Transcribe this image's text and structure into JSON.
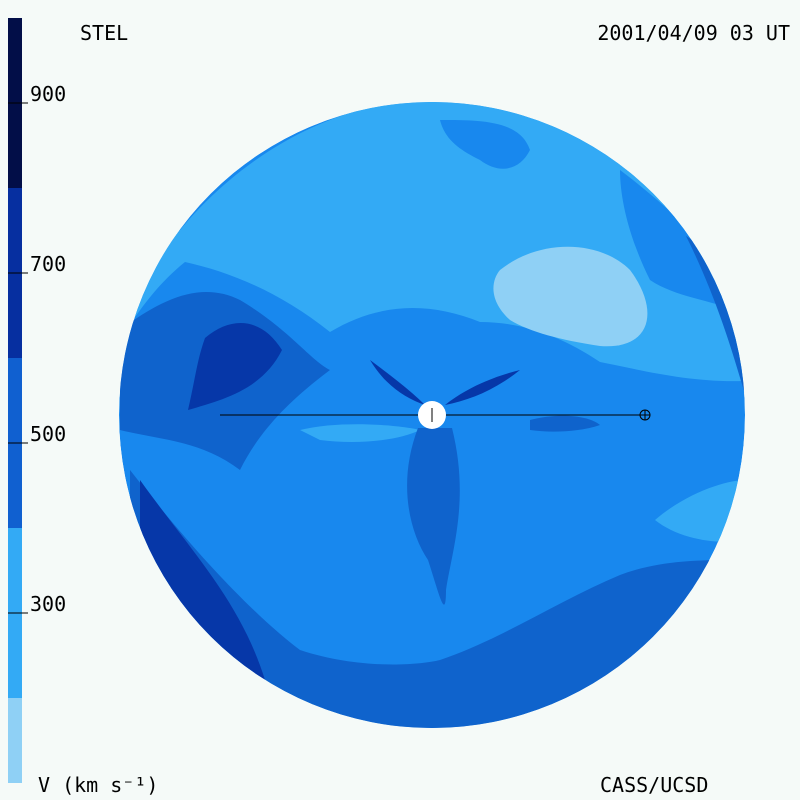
{
  "chart_data": {
    "type": "velocity-map",
    "title": "STEL",
    "subtitle": "2001/04/09 03 UT",
    "footer": "CASS/UCSD",
    "colorbar": {
      "label": "V (km s⁻¹)",
      "lim": [
        100,
        1000
      ],
      "ticks": [
        300,
        500,
        700,
        900
      ],
      "bands": [
        {
          "from": 100,
          "to": 200,
          "color": "#8fd0f5"
        },
        {
          "from": 200,
          "to": 400,
          "color": "#33aaf5"
        },
        {
          "from": 400,
          "to": 600,
          "color": "#1060d0"
        },
        {
          "from": 600,
          "to": 800,
          "color": "#062fa0"
        },
        {
          "from": 800,
          "to": 1000,
          "color": "#020e48"
        }
      ]
    }
  }
}
